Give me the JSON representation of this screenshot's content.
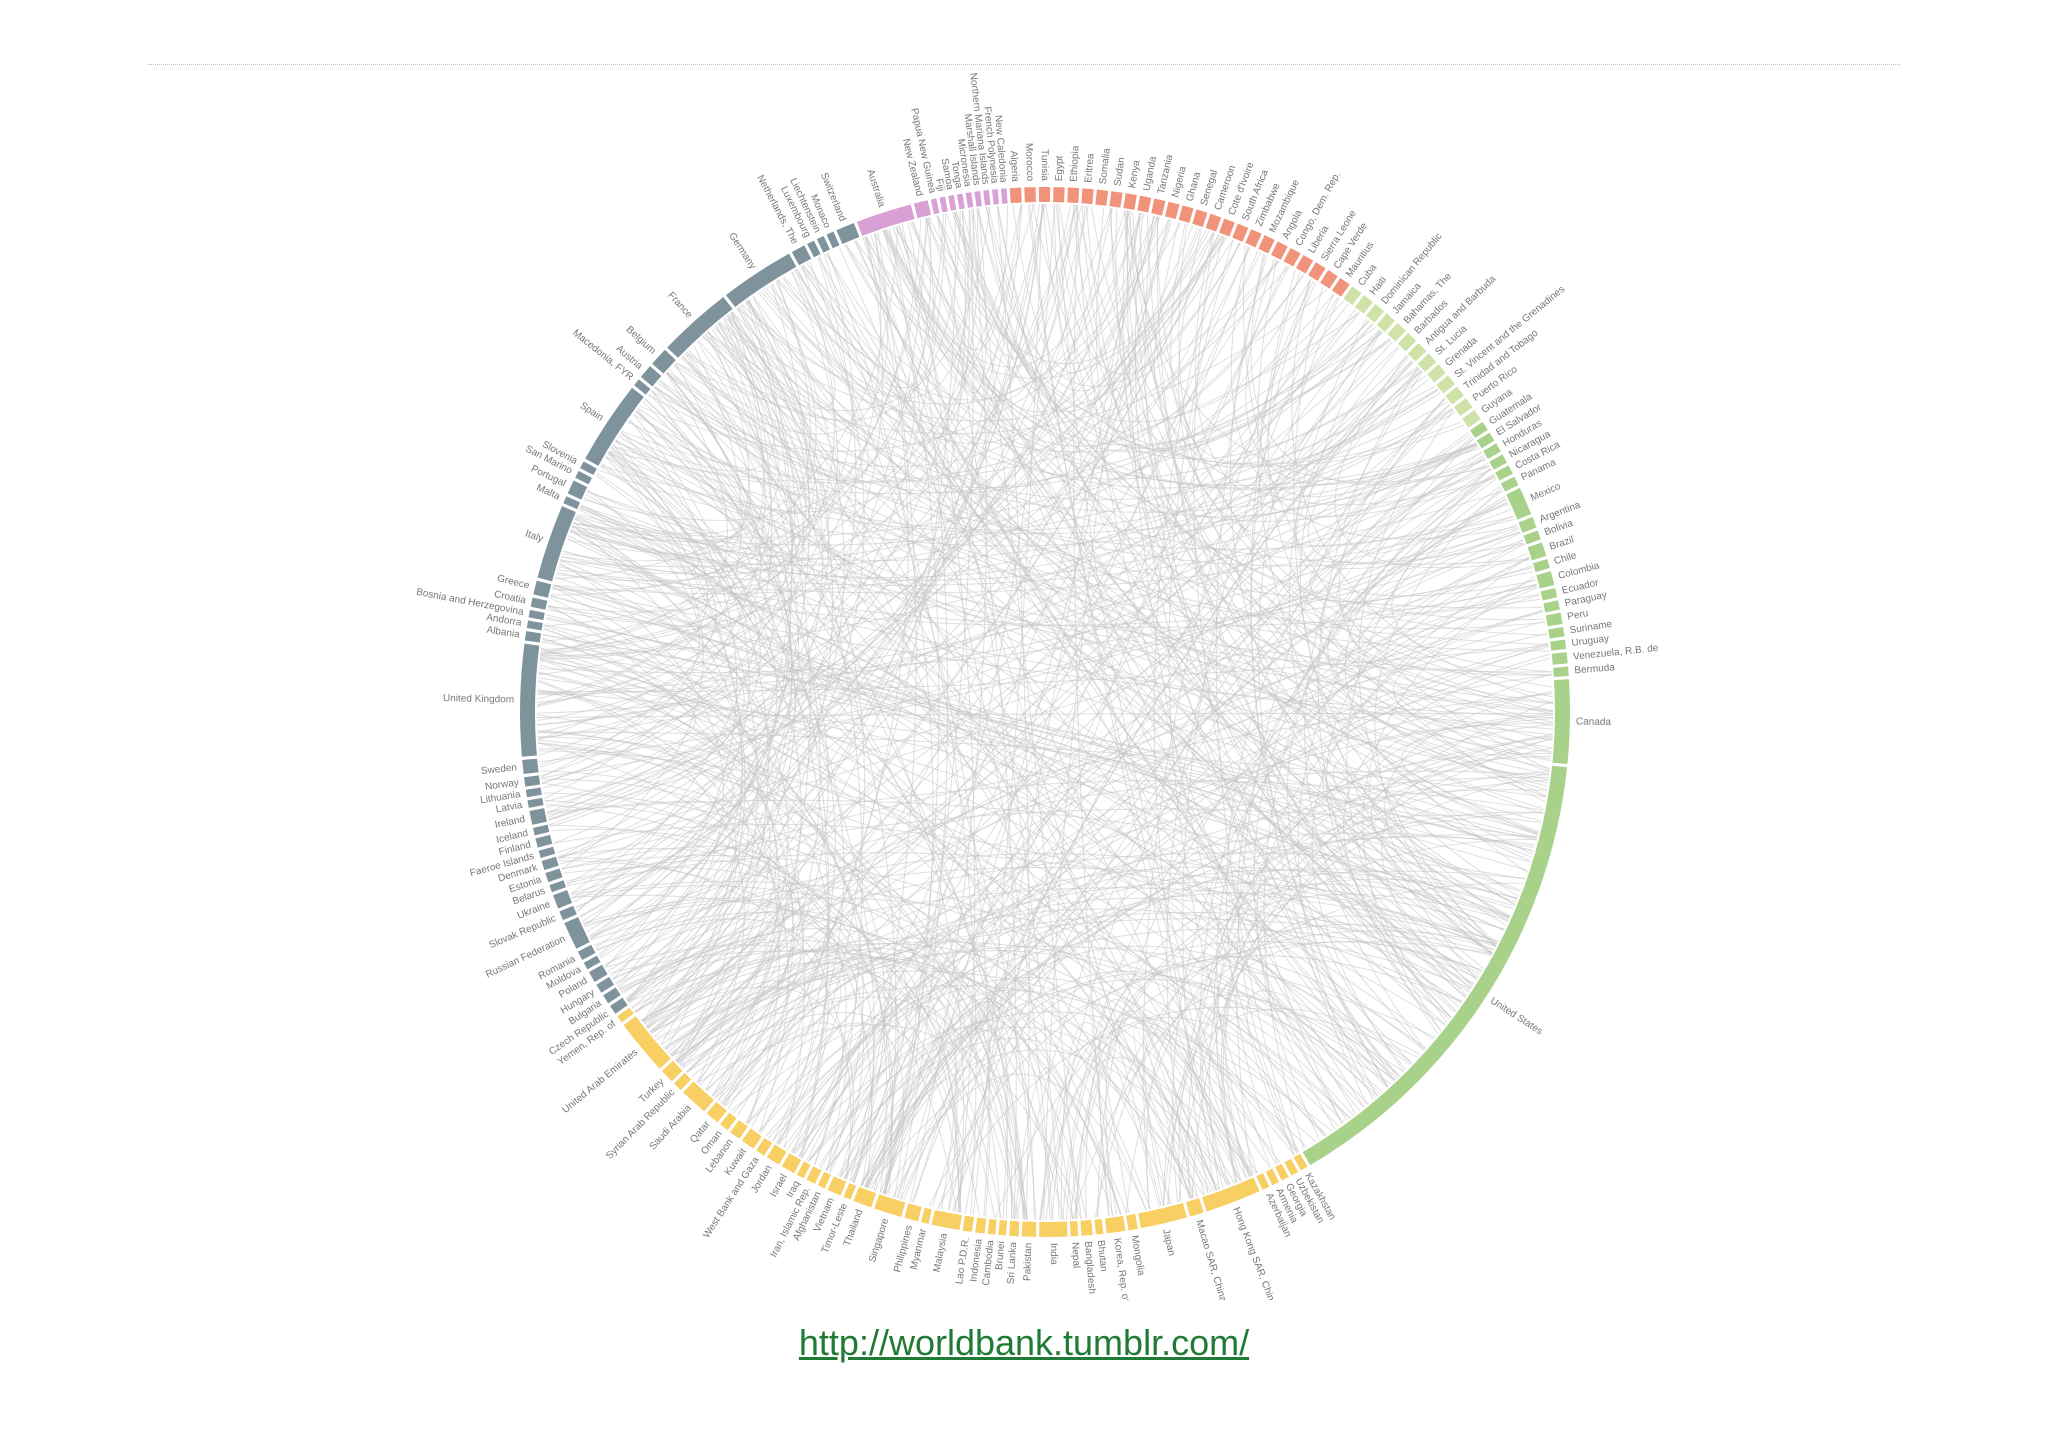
{
  "diagram": {
    "groups": [
      {
        "color": "#d9a0d6",
        "nodes": [
          {
            "label": "Australia",
            "value": 6
          },
          {
            "label": "New Zealand",
            "value": 1.5
          },
          {
            "label": "Papua New Guinea",
            "value": 0.6
          },
          {
            "label": "Fiji",
            "value": 0.6
          },
          {
            "label": "Samoa",
            "value": 0.6
          },
          {
            "label": "Tonga",
            "value": 0.6
          },
          {
            "label": "Micronesia",
            "value": 0.6
          },
          {
            "label": "Marshall Islands",
            "value": 0.6
          },
          {
            "label": "Northern Mariana Islands",
            "value": 0.6
          },
          {
            "label": "French Polynesia",
            "value": 0.6
          },
          {
            "label": "New Caledonia",
            "value": 0.6
          }
        ]
      },
      {
        "color": "#f0937a",
        "nodes": [
          {
            "label": "Algeria",
            "value": 1.2
          },
          {
            "label": "Morocco",
            "value": 1.2
          },
          {
            "label": "Tunisia",
            "value": 1.2
          },
          {
            "label": "Egypt",
            "value": 1.2
          },
          {
            "label": "Ethiopia",
            "value": 1.2
          },
          {
            "label": "Eritrea",
            "value": 1.2
          },
          {
            "label": "Somalia",
            "value": 1.2
          },
          {
            "label": "Sudan",
            "value": 1.2
          },
          {
            "label": "Kenya",
            "value": 1.2
          },
          {
            "label": "Uganda",
            "value": 1.2
          },
          {
            "label": "Tanzania",
            "value": 1.2
          },
          {
            "label": "Nigeria",
            "value": 1.2
          },
          {
            "label": "Ghana",
            "value": 1.2
          },
          {
            "label": "Senegal",
            "value": 1.2
          },
          {
            "label": "Cameroon",
            "value": 1.2
          },
          {
            "label": "Cote d'Ivoire",
            "value": 1.2
          },
          {
            "label": "South Africa",
            "value": 1.2
          },
          {
            "label": "Zimbabwe",
            "value": 1.2
          },
          {
            "label": "Mozambique",
            "value": 1.2
          },
          {
            "label": "Angola",
            "value": 1.2
          },
          {
            "label": "Congo, Dem. Rep.",
            "value": 1.2
          },
          {
            "label": "Liberia",
            "value": 1.2
          },
          {
            "label": "Sierra Leone",
            "value": 1.2
          },
          {
            "label": "Cape Verde",
            "value": 1.2
          },
          {
            "label": "Mauritius",
            "value": 1.2
          }
        ]
      },
      {
        "color": "#cfe3a8",
        "nodes": [
          {
            "label": "Cuba",
            "value": 1.2
          },
          {
            "label": "Haiti",
            "value": 1.2
          },
          {
            "label": "Dominican Republic",
            "value": 1.2
          },
          {
            "label": "Jamaica",
            "value": 1.2
          },
          {
            "label": "Bahamas, The",
            "value": 1.2
          },
          {
            "label": "Barbados",
            "value": 1.2
          },
          {
            "label": "Antigua and Barbuda",
            "value": 1.2
          },
          {
            "label": "St. Lucia",
            "value": 1.2
          },
          {
            "label": "Grenada",
            "value": 1.2
          },
          {
            "label": "St. Vincent and the Grenadines",
            "value": 1.2
          },
          {
            "label": "Trinidad and Tobago",
            "value": 1.2
          },
          {
            "label": "Puerto Rico",
            "value": 1.2
          },
          {
            "label": "Guyana",
            "value": 1.2
          }
        ]
      },
      {
        "color": "#a8d28a",
        "nodes": [
          {
            "label": "Guatemala",
            "value": 1
          },
          {
            "label": "El Salvador",
            "value": 1
          },
          {
            "label": "Honduras",
            "value": 1
          },
          {
            "label": "Nicaragua",
            "value": 1
          },
          {
            "label": "Costa Rica",
            "value": 1
          },
          {
            "label": "Panama",
            "value": 1
          },
          {
            "label": "Mexico",
            "value": 3
          },
          {
            "label": "Argentina",
            "value": 1.2
          },
          {
            "label": "Bolivia",
            "value": 1
          },
          {
            "label": "Brazil",
            "value": 1.5
          },
          {
            "label": "Chile",
            "value": 1
          },
          {
            "label": "Colombia",
            "value": 1.5
          },
          {
            "label": "Ecuador",
            "value": 1
          },
          {
            "label": "Paraguay",
            "value": 1
          },
          {
            "label": "Peru",
            "value": 1.2
          },
          {
            "label": "Suriname",
            "value": 1
          },
          {
            "label": "Uruguay",
            "value": 1
          },
          {
            "label": "Venezuela, R.B. de",
            "value": 1.2
          },
          {
            "label": "Bermuda",
            "value": 1
          },
          {
            "label": "Canada",
            "value": 9
          },
          {
            "label": "United States",
            "value": 52
          }
        ]
      },
      {
        "color": "#f7cf62",
        "nodes": [
          {
            "label": "Kazakhstan",
            "value": 0.8
          },
          {
            "label": "Uzbekistan",
            "value": 0.8
          },
          {
            "label": "Georgia",
            "value": 0.8
          },
          {
            "label": "Armenia",
            "value": 0.8
          },
          {
            "label": "Azerbaijan",
            "value": 0.8
          },
          {
            "label": "Hong Kong SAR, China",
            "value": 6
          },
          {
            "label": "Macao SAR, China",
            "value": 1.5
          },
          {
            "label": "Japan",
            "value": 5
          },
          {
            "label": "Mongolia",
            "value": 1
          },
          {
            "label": "Korea, Rep. of",
            "value": 2
          },
          {
            "label": "Bhutan",
            "value": 0.8
          },
          {
            "label": "Bangladesh",
            "value": 1.2
          },
          {
            "label": "Nepal",
            "value": 0.8
          },
          {
            "label": "India",
            "value": 3
          },
          {
            "label": "Pakistan",
            "value": 1.5
          },
          {
            "label": "Sri Lanka",
            "value": 1
          },
          {
            "label": "Brunei",
            "value": 0.8
          },
          {
            "label": "Cambodia",
            "value": 0.8
          },
          {
            "label": "Indonesia",
            "value": 1
          },
          {
            "label": "Lao P.D.R.",
            "value": 1
          },
          {
            "label": "Malaysia",
            "value": 3
          },
          {
            "label": "Myanmar",
            "value": 0.8
          },
          {
            "label": "Philippines",
            "value": 1.5
          },
          {
            "label": "Singapore",
            "value": 3
          },
          {
            "label": "Thailand",
            "value": 2
          },
          {
            "label": "Timor-Leste",
            "value": 0.8
          },
          {
            "label": "Vietnam",
            "value": 1.5
          },
          {
            "label": "Afghanistan",
            "value": 0.8
          },
          {
            "label": "Iran, Islamic Rep.",
            "value": 1
          },
          {
            "label": "Iraq",
            "value": 0.8
          },
          {
            "label": "Israel",
            "value": 1.5
          },
          {
            "label": "Jordan",
            "value": 1.5
          },
          {
            "label": "West Bank and Gaza",
            "value": 1
          },
          {
            "label": "Kuwait",
            "value": 1.5
          },
          {
            "label": "Lebanon",
            "value": 1.2
          },
          {
            "label": "Oman",
            "value": 1
          },
          {
            "label": "Qatar",
            "value": 1.5
          },
          {
            "label": "Saudi Arabia",
            "value": 3
          },
          {
            "label": "Syrian Arab Republic",
            "value": 1
          },
          {
            "label": "Turkey",
            "value": 1.5
          },
          {
            "label": "United Arab Emirates",
            "value": 6
          },
          {
            "label": "Yemen, Rep. of",
            "value": 0.8
          }
        ]
      },
      {
        "color": "#7e939c",
        "nodes": [
          {
            "label": "Czech Republic",
            "value": 1
          },
          {
            "label": "Bulgaria",
            "value": 1
          },
          {
            "label": "Hungary",
            "value": 1
          },
          {
            "label": "Poland",
            "value": 1.2
          },
          {
            "label": "Moldova",
            "value": 0.8
          },
          {
            "label": "Romania",
            "value": 1
          },
          {
            "label": "Russian Federation",
            "value": 3
          },
          {
            "label": "Slovak Republic",
            "value": 1
          },
          {
            "label": "Ukraine",
            "value": 1.5
          },
          {
            "label": "Belarus",
            "value": 0.8
          },
          {
            "label": "Estonia",
            "value": 1
          },
          {
            "label": "Denmark",
            "value": 1
          },
          {
            "label": "Faeroe Islands",
            "value": 0.8
          },
          {
            "label": "Finland",
            "value": 1
          },
          {
            "label": "Iceland",
            "value": 0.8
          },
          {
            "label": "Ireland",
            "value": 1.5
          },
          {
            "label": "Latvia",
            "value": 0.8
          },
          {
            "label": "Lithuania",
            "value": 0.8
          },
          {
            "label": "Norway",
            "value": 1
          },
          {
            "label": "Sweden",
            "value": 1.5
          },
          {
            "label": "United Kingdom",
            "value": 12
          },
          {
            "label": "Albania",
            "value": 1
          },
          {
            "label": "Andorra",
            "value": 0.8
          },
          {
            "label": "Bosnia and Herzegovina",
            "value": 0.8
          },
          {
            "label": "Croatia",
            "value": 1
          },
          {
            "label": "Greece",
            "value": 1.5
          },
          {
            "label": "Italy",
            "value": 8
          },
          {
            "label": "Malta",
            "value": 0.8
          },
          {
            "label": "Portugal",
            "value": 1.5
          },
          {
            "label": "San Marino",
            "value": 0.8
          },
          {
            "label": "Slovenia",
            "value": 0.8
          },
          {
            "label": "Spain",
            "value": 9
          },
          {
            "label": "Macedonia, FYR",
            "value": 0.8
          },
          {
            "label": "Austria",
            "value": 1.5
          },
          {
            "label": "Belgium",
            "value": 2
          },
          {
            "label": "France",
            "value": 8
          },
          {
            "label": "Germany",
            "value": 8
          },
          {
            "label": "Netherlands, The",
            "value": 1.5
          },
          {
            "label": "Luxembourg",
            "value": 0.8
          },
          {
            "label": "Liechtenstein",
            "value": 0.8
          },
          {
            "label": "Monaco",
            "value": 0.8
          },
          {
            "label": "Switzerland",
            "value": 2
          }
        ]
      }
    ]
  },
  "link": {
    "text": "http://worldbank.tumblr.com/"
  }
}
